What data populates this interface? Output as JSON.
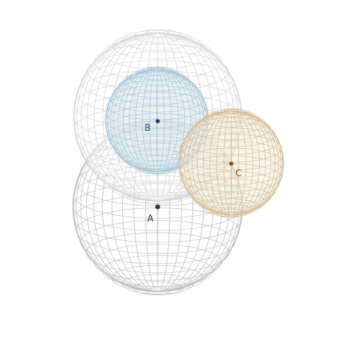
{
  "spheres": [
    {
      "id": "A",
      "label": "A",
      "label_color": "#333333",
      "mesh_color": "#bdbdbd",
      "fill_color": "#ffffff",
      "marker_color": "#333333"
    },
    {
      "id": "top",
      "label": "",
      "label_color": "#999999",
      "mesh_color": "#d6d6d6",
      "fill_color": "#ffffff",
      "marker_color": "#999999"
    },
    {
      "id": "B",
      "label": "B",
      "label_color": "#1f4f7a",
      "mesh_color": "#a9c6d6",
      "fill_color": "#dce9f0",
      "marker_color": "#1f3c66"
    },
    {
      "id": "C",
      "label": "C",
      "label_color": "#8a4b1c",
      "mesh_color": "#d2bd96",
      "fill_color": "#f6eee0",
      "marker_color": "#a23b1c"
    }
  ]
}
